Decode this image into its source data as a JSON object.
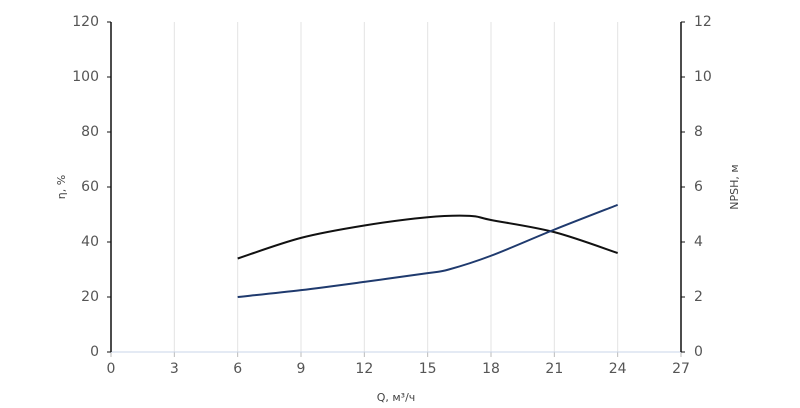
{
  "chart_data": {
    "type": "line",
    "x_label": "Q, м³/ч",
    "y_label": "η, %",
    "y2_label": "NPSH, м",
    "xlim": [
      0,
      27
    ],
    "xticks": [
      0,
      3,
      6,
      9,
      12,
      15,
      18,
      21,
      24,
      27
    ],
    "ylim": [
      0,
      120
    ],
    "yticks": [
      0,
      20,
      40,
      60,
      80,
      100,
      120
    ],
    "y2lim": [
      0,
      12
    ],
    "y2ticks": [
      0,
      2,
      4,
      6,
      8,
      10,
      12
    ],
    "grid": "x",
    "series": [
      {
        "color": "#111111",
        "x": [
          6,
          9,
          12,
          15,
          17,
          18,
          21,
          24
        ],
        "values": [
          34,
          41.5,
          46,
          49,
          49.5,
          48,
          43.6,
          36
        ]
      },
      {
        "color": "#1f3a6e",
        "axis": "y2",
        "x": [
          6,
          9,
          12,
          15,
          16,
          18,
          21,
          24
        ],
        "values": [
          2.0,
          2.25,
          2.55,
          2.87,
          3.0,
          3.5,
          4.45,
          5.35
        ]
      }
    ]
  }
}
